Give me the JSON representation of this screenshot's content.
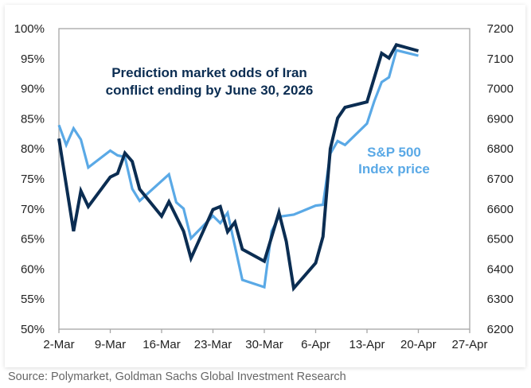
{
  "chart_data": {
    "type": "line",
    "annotations": {
      "odds_label": [
        "Prediction market odds of Iran",
        "conflict ending by June 30, 2026"
      ],
      "sp500_label": [
        "S&P 500",
        "Index price"
      ]
    },
    "x_ticks": [
      "2-Mar",
      "9-Mar",
      "16-Mar",
      "23-Mar",
      "30-Mar",
      "6-Apr",
      "13-Apr",
      "20-Apr",
      "27-Apr"
    ],
    "xlim": [
      "2026-03-02",
      "2026-04-27"
    ],
    "y_left": {
      "ticks": [
        "50%",
        "55%",
        "60%",
        "65%",
        "70%",
        "75%",
        "80%",
        "85%",
        "90%",
        "95%",
        "100%"
      ],
      "ylim": [
        50,
        100
      ]
    },
    "y_right": {
      "ticks": [
        "6200",
        "6300",
        "6400",
        "6500",
        "6600",
        "6700",
        "6800",
        "6900",
        "7000",
        "7100",
        "7200"
      ],
      "ylim": [
        6200,
        7200
      ]
    },
    "grid": false,
    "series": [
      {
        "axis": "left",
        "color": "#0b2d52",
        "points": [
          [
            "2026-03-02",
            81.7
          ],
          [
            "2026-03-04",
            66.3
          ],
          [
            "2026-03-05",
            73.0
          ],
          [
            "2026-03-06",
            70.4
          ],
          [
            "2026-03-09",
            75.3
          ],
          [
            "2026-03-10",
            75.9
          ],
          [
            "2026-03-11",
            79.3
          ],
          [
            "2026-03-12",
            77.9
          ],
          [
            "2026-03-13",
            73.3
          ],
          [
            "2026-03-16",
            68.8
          ],
          [
            "2026-03-17",
            71.2
          ],
          [
            "2026-03-19",
            66.3
          ],
          [
            "2026-03-20",
            61.8
          ],
          [
            "2026-03-23",
            69.9
          ],
          [
            "2026-03-24",
            70.4
          ],
          [
            "2026-03-25",
            66.2
          ],
          [
            "2026-03-26",
            67.8
          ],
          [
            "2026-03-27",
            63.3
          ],
          [
            "2026-03-30",
            61.3
          ],
          [
            "2026-04-01",
            69.4
          ],
          [
            "2026-04-02",
            64.6
          ],
          [
            "2026-04-03",
            56.8
          ],
          [
            "2026-04-06",
            61.0
          ],
          [
            "2026-04-07",
            65.4
          ],
          [
            "2026-04-08",
            80.0
          ],
          [
            "2026-04-09",
            85.1
          ],
          [
            "2026-04-10",
            86.9
          ],
          [
            "2026-04-13",
            87.8
          ],
          [
            "2026-04-15",
            95.9
          ],
          [
            "2026-04-16",
            95.1
          ],
          [
            "2026-04-17",
            97.3
          ],
          [
            "2026-04-20",
            96.3
          ]
        ]
      },
      {
        "axis": "right",
        "color": "#5aa9e6",
        "points": [
          [
            "2026-03-02",
            6879
          ],
          [
            "2026-03-03",
            6813
          ],
          [
            "2026-03-04",
            6868
          ],
          [
            "2026-03-05",
            6831
          ],
          [
            "2026-03-06",
            6738
          ],
          [
            "2026-03-09",
            6794
          ],
          [
            "2026-03-10",
            6778
          ],
          [
            "2026-03-11",
            6773
          ],
          [
            "2026-03-12",
            6667
          ],
          [
            "2026-03-13",
            6627
          ],
          [
            "2026-03-17",
            6715
          ],
          [
            "2026-03-18",
            6622
          ],
          [
            "2026-03-19",
            6601
          ],
          [
            "2026-03-20",
            6502
          ],
          [
            "2026-03-23",
            6577
          ],
          [
            "2026-03-24",
            6553
          ],
          [
            "2026-03-25",
            6587
          ],
          [
            "2026-03-27",
            6364
          ],
          [
            "2026-03-30",
            6340
          ],
          [
            "2026-03-31",
            6526
          ],
          [
            "2026-04-01",
            6574
          ],
          [
            "2026-04-03",
            6581
          ],
          [
            "2026-04-06",
            6611
          ],
          [
            "2026-04-07",
            6614
          ],
          [
            "2026-04-08",
            6784
          ],
          [
            "2026-04-09",
            6826
          ],
          [
            "2026-04-10",
            6813
          ],
          [
            "2026-04-13",
            6884
          ],
          [
            "2026-04-14",
            6959
          ],
          [
            "2026-04-15",
            7022
          ],
          [
            "2026-04-16",
            7038
          ],
          [
            "2026-04-17",
            7128
          ],
          [
            "2026-04-20",
            7110
          ]
        ]
      }
    ]
  },
  "source": "Source: Polymarket, Goldman Sachs Global Investment Research"
}
